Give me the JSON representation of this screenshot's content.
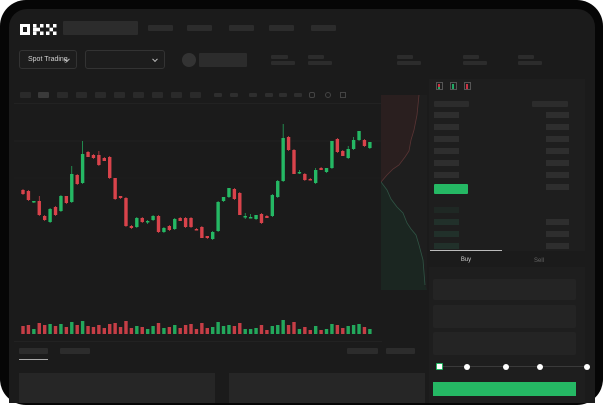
{
  "logo": "OKX",
  "toolbar": {
    "market_selector": "Spot Trading"
  },
  "trade": {
    "tabs": [
      "Buy",
      "Sell"
    ],
    "active_tab": "Buy",
    "slider_percent": 0
  },
  "colors": {
    "up": "#25b864",
    "down": "#d9434b",
    "accent": "#25b864",
    "background": "#1b1b1b"
  },
  "chart_data": {
    "type": "candlestick",
    "candles": [
      [
        119,
        120,
        114,
        115
      ],
      [
        118,
        119,
        108,
        109
      ],
      [
        107,
        108,
        106,
        108
      ],
      [
        108,
        113,
        93,
        94
      ],
      [
        93,
        94,
        88,
        89
      ],
      [
        87,
        101,
        86,
        100
      ],
      [
        102,
        103,
        93,
        94
      ],
      [
        98,
        114,
        97,
        113
      ],
      [
        113,
        113,
        105,
        106
      ],
      [
        107,
        143,
        106,
        135
      ],
      [
        134,
        135,
        124,
        125
      ],
      [
        126,
        168,
        125,
        155
      ],
      [
        157,
        158,
        152,
        152
      ],
      [
        154,
        155,
        150,
        151
      ],
      [
        154,
        158,
        143,
        144
      ],
      [
        151,
        152,
        148,
        148
      ],
      [
        152,
        153,
        130,
        131
      ],
      [
        131,
        131,
        109,
        110
      ],
      [
        113,
        113,
        110,
        111
      ],
      [
        111,
        112,
        82,
        83
      ],
      [
        83,
        84,
        80,
        81
      ],
      [
        82,
        92,
        81,
        91
      ],
      [
        91,
        92,
        86,
        87
      ],
      [
        87,
        89,
        85,
        88
      ],
      [
        89,
        94,
        88,
        93
      ],
      [
        93,
        94,
        76,
        77
      ],
      [
        77,
        82,
        76,
        81
      ],
      [
        83,
        84,
        78,
        79
      ],
      [
        80,
        91,
        79,
        90
      ],
      [
        91,
        92,
        88,
        88
      ],
      [
        91,
        92,
        81,
        82
      ],
      [
        91,
        92,
        81,
        82
      ],
      [
        80,
        81,
        79,
        79
      ],
      [
        82,
        83,
        71,
        71
      ],
      [
        73,
        73,
        70,
        71
      ],
      [
        70,
        78,
        69,
        77
      ],
      [
        78,
        108,
        77,
        107
      ],
      [
        108,
        112,
        107,
        112
      ],
      [
        112,
        121,
        111,
        121
      ],
      [
        120,
        121,
        109,
        110
      ],
      [
        116,
        117,
        94,
        94
      ],
      [
        92,
        96,
        90,
        93
      ],
      [
        92,
        95,
        91,
        92
      ],
      [
        90,
        94,
        89,
        94
      ],
      [
        95,
        96,
        85,
        86
      ],
      [
        93,
        94,
        91,
        91
      ],
      [
        93,
        115,
        92,
        114
      ],
      [
        112,
        129,
        111,
        128
      ],
      [
        128,
        185,
        127,
        171
      ],
      [
        172,
        173,
        158,
        159
      ],
      [
        159,
        160,
        135,
        135
      ],
      [
        137,
        139,
        135,
        137
      ],
      [
        135,
        136,
        128,
        129
      ],
      [
        130,
        131,
        129,
        129
      ],
      [
        126,
        141,
        125,
        139
      ],
      [
        141,
        142,
        139,
        139
      ],
      [
        137,
        141,
        136,
        141
      ],
      [
        141,
        168,
        140,
        168
      ],
      [
        170,
        171,
        156,
        157
      ],
      [
        158,
        159,
        153,
        153
      ],
      [
        151,
        163,
        150,
        160
      ],
      [
        160,
        172,
        159,
        169
      ],
      [
        169,
        178,
        168,
        178
      ],
      [
        169,
        170,
        162,
        163
      ],
      [
        161,
        167,
        160,
        167
      ]
    ],
    "volume": [
      8,
      9,
      5,
      11,
      9,
      10,
      8,
      10,
      7,
      12,
      9,
      13,
      8,
      7,
      9,
      6,
      10,
      11,
      7,
      13,
      6,
      8,
      7,
      5,
      8,
      11,
      6,
      7,
      9,
      6,
      9,
      10,
      5,
      11,
      6,
      7,
      12,
      8,
      9,
      8,
      11,
      5,
      5,
      6,
      9,
      4,
      8,
      9,
      14,
      9,
      12,
      5,
      7,
      4,
      8,
      4,
      5,
      10,
      9,
      6,
      8,
      9,
      10,
      7,
      5
    ]
  }
}
